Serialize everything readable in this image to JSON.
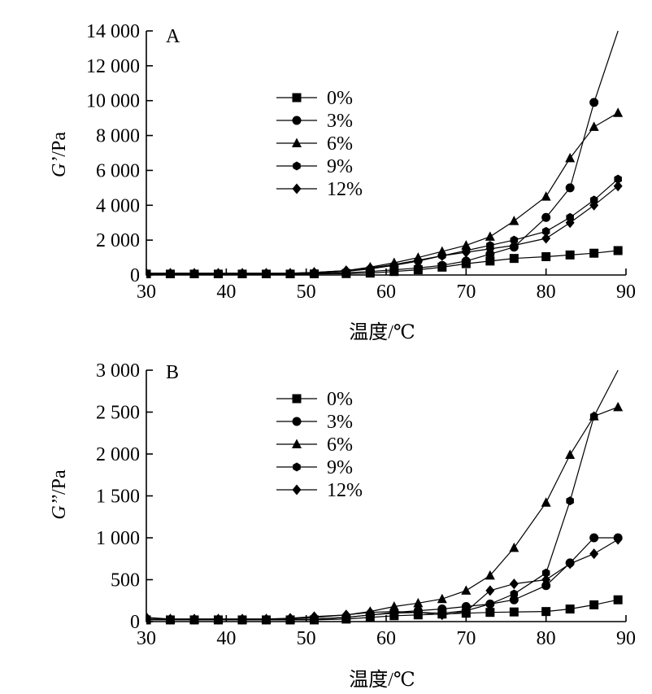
{
  "chart_data": [
    {
      "panel": "A",
      "type": "line",
      "ylabel_var": "G’",
      "ylabel_unit": "/Pa",
      "xlabel": "温度/℃",
      "xlim": [
        30,
        90
      ],
      "ylim": [
        0,
        14000
      ],
      "x_ticks": [
        30,
        40,
        50,
        60,
        70,
        80,
        90
      ],
      "x_tick_labels": [
        "30",
        "40",
        "50",
        "60",
        "70",
        "80",
        "90"
      ],
      "y_ticks": [
        0,
        2000,
        4000,
        6000,
        8000,
        10000,
        12000,
        14000
      ],
      "y_tick_labels": [
        "0",
        "2 000",
        "4 000",
        "6 000",
        "8 000",
        "10 000",
        "12 000",
        "14 000"
      ],
      "legend": "upper-center",
      "series": [
        {
          "name": "0%",
          "marker": "square",
          "x": [
            30,
            33,
            36,
            39,
            42,
            45,
            48,
            51,
            55,
            58,
            61,
            64,
            67,
            70,
            73,
            76,
            80,
            83,
            86,
            89
          ],
          "y": [
            50,
            50,
            50,
            50,
            50,
            50,
            50,
            60,
            80,
            110,
            200,
            300,
            450,
            650,
            800,
            950,
            1050,
            1150,
            1250,
            1400
          ]
        },
        {
          "name": "3%",
          "marker": "circle",
          "x": [
            30,
            33,
            36,
            39,
            42,
            45,
            48,
            51,
            55,
            58,
            61,
            64,
            67,
            70,
            73,
            76,
            80,
            83,
            86,
            89
          ],
          "y": [
            50,
            50,
            50,
            50,
            50,
            50,
            50,
            70,
            120,
            200,
            300,
            400,
            550,
            800,
            1200,
            1600,
            3300,
            5000,
            9900,
            14000
          ]
        },
        {
          "name": "6%",
          "marker": "triangle",
          "x": [
            30,
            33,
            36,
            39,
            42,
            45,
            48,
            51,
            55,
            58,
            61,
            64,
            67,
            70,
            73,
            76,
            80,
            83,
            86,
            89
          ],
          "y": [
            100,
            100,
            100,
            100,
            100,
            100,
            100,
            150,
            250,
            450,
            700,
            1000,
            1350,
            1700,
            2200,
            3100,
            4500,
            6700,
            8500,
            9300
          ]
        },
        {
          "name": "9%",
          "marker": "hexagon",
          "x": [
            30,
            33,
            36,
            39,
            42,
            45,
            48,
            51,
            55,
            58,
            61,
            64,
            67,
            70,
            73,
            76,
            80,
            83,
            86,
            89
          ],
          "y": [
            50,
            50,
            50,
            50,
            50,
            50,
            50,
            100,
            200,
            350,
            550,
            800,
            1100,
            1400,
            1700,
            2000,
            2500,
            3300,
            4300,
            5500
          ]
        },
        {
          "name": "12%",
          "marker": "diamond",
          "x": [
            30,
            33,
            36,
            39,
            42,
            45,
            48,
            51,
            55,
            58,
            61,
            64,
            67,
            70,
            73,
            76,
            80,
            83,
            86,
            89
          ],
          "y": [
            100,
            100,
            100,
            100,
            100,
            100,
            100,
            150,
            250,
            400,
            600,
            850,
            1100,
            1300,
            1500,
            1700,
            2100,
            3000,
            4000,
            5100
          ]
        }
      ]
    },
    {
      "panel": "B",
      "type": "line",
      "ylabel_var": "G’’",
      "ylabel_unit": "/Pa",
      "xlabel": "温度/℃",
      "xlim": [
        30,
        90
      ],
      "ylim": [
        0,
        3000
      ],
      "x_ticks": [
        30,
        40,
        50,
        60,
        70,
        80,
        90
      ],
      "x_tick_labels": [
        "30",
        "40",
        "50",
        "60",
        "70",
        "80",
        "90"
      ],
      "y_ticks": [
        0,
        500,
        1000,
        1500,
        2000,
        2500,
        3000
      ],
      "y_tick_labels": [
        "0",
        "500",
        "1 000",
        "1 500",
        "2 000",
        "2 500",
        "3 000"
      ],
      "legend": "upper-center",
      "series": [
        {
          "name": "0%",
          "marker": "square",
          "x": [
            30,
            33,
            36,
            39,
            42,
            45,
            48,
            51,
            55,
            58,
            61,
            64,
            67,
            70,
            73,
            76,
            80,
            83,
            86,
            89
          ],
          "y": [
            20,
            20,
            20,
            20,
            20,
            20,
            20,
            20,
            30,
            50,
            70,
            80,
            90,
            100,
            110,
            115,
            120,
            150,
            200,
            260
          ]
        },
        {
          "name": "3%",
          "marker": "circle",
          "x": [
            30,
            33,
            36,
            39,
            42,
            45,
            48,
            51,
            55,
            58,
            61,
            64,
            67,
            70,
            73,
            76,
            80,
            83,
            86,
            89
          ],
          "y": [
            20,
            20,
            20,
            20,
            20,
            20,
            20,
            30,
            50,
            80,
            110,
            130,
            150,
            180,
            210,
            260,
            430,
            700,
            1000,
            1000
          ]
        },
        {
          "name": "6%",
          "marker": "triangle",
          "x": [
            30,
            33,
            36,
            39,
            42,
            45,
            48,
            51,
            55,
            58,
            61,
            64,
            67,
            70,
            73,
            76,
            80,
            83,
            86,
            89
          ],
          "y": [
            30,
            30,
            30,
            30,
            30,
            30,
            30,
            50,
            80,
            120,
            180,
            220,
            270,
            370,
            550,
            880,
            1420,
            1990,
            2450,
            2560
          ]
        },
        {
          "name": "9%",
          "marker": "hexagon",
          "x": [
            30,
            33,
            36,
            39,
            42,
            45,
            48,
            51,
            55,
            58,
            61,
            64,
            67,
            70,
            73,
            76,
            80,
            83,
            86,
            89
          ],
          "y": [
            20,
            20,
            20,
            20,
            20,
            20,
            20,
            30,
            50,
            80,
            100,
            110,
            100,
            130,
            210,
            330,
            580,
            1440,
            2450,
            3000
          ]
        },
        {
          "name": "12%",
          "marker": "diamond",
          "x": [
            30,
            33,
            36,
            39,
            42,
            45,
            48,
            51,
            55,
            58,
            61,
            64,
            67,
            70,
            73,
            76,
            80,
            83,
            86,
            89
          ],
          "y": [
            50,
            30,
            30,
            30,
            30,
            30,
            40,
            60,
            80,
            110,
            120,
            110,
            80,
            120,
            370,
            450,
            500,
            690,
            810,
            980
          ]
        }
      ]
    }
  ]
}
